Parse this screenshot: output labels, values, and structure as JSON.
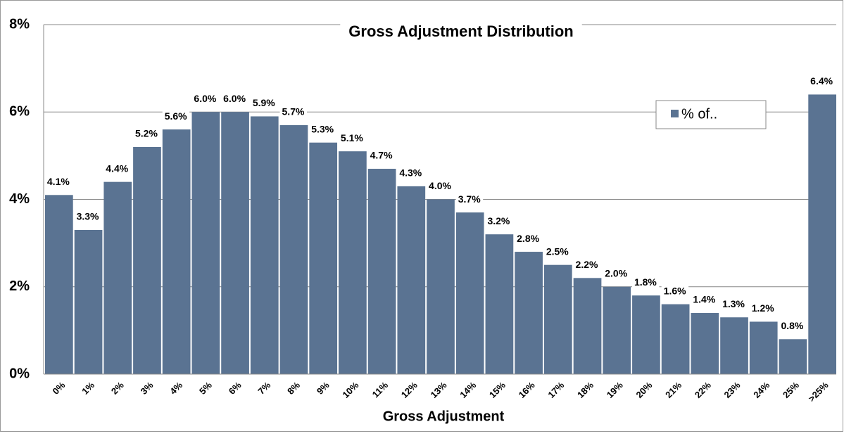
{
  "chart_data": {
    "type": "bar",
    "title": "Gross Adjustment Distribution",
    "x_label": "Gross Adjustment",
    "categories": [
      "0%",
      "1%",
      "2%",
      "3%",
      "4%",
      "5%",
      "6%",
      "7%",
      "8%",
      "9%",
      "10%",
      "11%",
      "12%",
      "13%",
      "14%",
      "15%",
      "16%",
      "17%",
      "18%",
      "19%",
      "20%",
      "21%",
      "22%",
      "23%",
      "24%",
      "25%",
      ">25%"
    ],
    "series": [
      {
        "name": "% of..",
        "color": "#5a7392",
        "values": [
          4.1,
          3.3,
          4.4,
          5.2,
          5.6,
          6.0,
          6.0,
          5.9,
          5.7,
          5.3,
          5.1,
          4.7,
          4.3,
          4.0,
          3.7,
          3.2,
          2.8,
          2.5,
          2.2,
          2.0,
          1.8,
          1.6,
          1.4,
          1.3,
          1.2,
          0.8,
          6.4
        ],
        "value_labels": [
          "4.1%",
          "3.3%",
          "4.4%",
          "5.2%",
          "5.6%",
          "6.0%",
          "6.0%",
          "5.9%",
          "5.7%",
          "5.3%",
          "5.1%",
          "4.7%",
          "4.3%",
          "4.0%",
          "3.7%",
          "3.2%",
          "2.8%",
          "2.5%",
          "2.2%",
          "2.0%",
          "1.8%",
          "1.6%",
          "1.4%",
          "1.3%",
          "1.2%",
          "0.8%",
          "6.4%"
        ]
      }
    ],
    "ylim": [
      0,
      8
    ],
    "yticks": [
      {
        "value": 0,
        "label": "0%"
      },
      {
        "value": 2,
        "label": "2%"
      },
      {
        "value": 4,
        "label": "4%"
      },
      {
        "value": 6,
        "label": "6%"
      },
      {
        "value": 8,
        "label": "8%"
      }
    ],
    "grid": true,
    "legend": "upper right"
  }
}
